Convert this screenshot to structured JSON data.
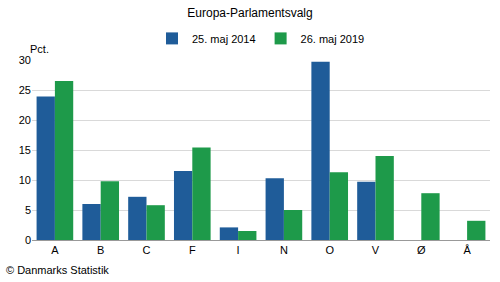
{
  "chart_data": {
    "type": "bar",
    "title": "Europa-Parlamentsvalg",
    "ylabel": "Pct.",
    "annotations": [
      "© Danmarks Statistik"
    ],
    "categories": [
      "A",
      "B",
      "C",
      "F",
      "I",
      "N",
      "O",
      "V",
      "Ø",
      "Å"
    ],
    "series": [
      {
        "name": "25. maj 2014",
        "color": "#1f5c99",
        "values": [
          23.9,
          6.0,
          7.2,
          11.5,
          2.1,
          10.3,
          29.7,
          9.7,
          null,
          null
        ]
      },
      {
        "name": "26. maj 2019",
        "color": "#1e9a4a",
        "values": [
          26.5,
          9.8,
          5.8,
          15.4,
          1.5,
          5.0,
          11.3,
          14.0,
          7.8,
          3.2
        ]
      }
    ],
    "ylim": [
      0,
      30
    ],
    "yticks": [
      0,
      5,
      10,
      15,
      20,
      25,
      30
    ],
    "grid": true,
    "legend": "top"
  }
}
